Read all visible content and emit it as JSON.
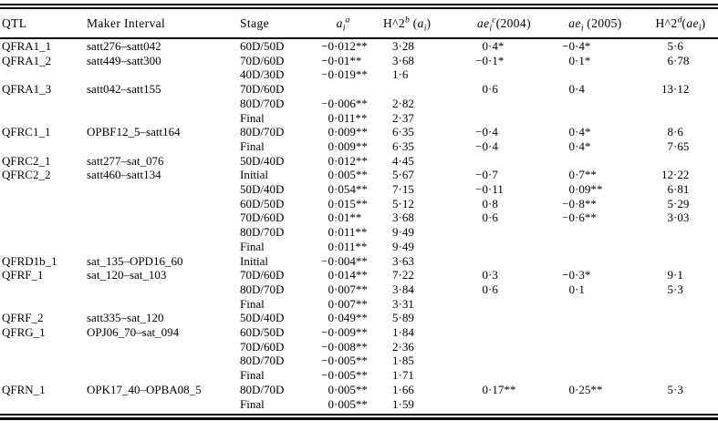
{
  "meta": {
    "background_color": "#ffffff",
    "text_color": "#000000",
    "rule_color": "#000000"
  },
  "header": {
    "qtl": "QTL",
    "interval": "Maker Interval",
    "stage": "Stage",
    "ai": [
      {
        "t": "a",
        "i": true
      },
      {
        "t": "i",
        "f": "sub",
        "i": true
      },
      {
        "t": "a",
        "f": "sup",
        "i": true
      }
    ],
    "h2a": [
      {
        "t": "H^2"
      },
      {
        "t": "b",
        "f": "sup",
        "i": true
      },
      {
        "t": " ("
      },
      {
        "t": "a",
        "i": true
      },
      {
        "t": "i",
        "f": "sub",
        "i": true
      },
      {
        "t": ")"
      }
    ],
    "ae04": [
      {
        "t": "ae",
        "i": true
      },
      {
        "t": "i",
        "f": "sub",
        "i": true
      },
      {
        "t": "c",
        "f": "sup",
        "i": true
      },
      {
        "t": "(2004)"
      }
    ],
    "ae05": [
      {
        "t": "ae",
        "i": true
      },
      {
        "t": "i",
        "f": "sub",
        "i": true
      },
      {
        "t": " (2005)"
      }
    ],
    "h2ae": [
      {
        "t": "H^2"
      },
      {
        "t": "d",
        "f": "sup",
        "i": true
      },
      {
        "t": "("
      },
      {
        "t": "ae",
        "i": true
      },
      {
        "t": "i",
        "f": "sub",
        "i": true
      },
      {
        "t": ")"
      }
    ]
  },
  "rows": [
    {
      "q": "QFRA1_1",
      "m": "satt276–satt042",
      "s": "60D/50D",
      "a": "−0·012**",
      "h": "3·28",
      "e4": "0·4*",
      "e5": "−0·4*",
      "he": "5·6"
    },
    {
      "q": "QFRA1_2",
      "m": "satt449–satt300",
      "s": "70D/60D",
      "a": "−0·01**",
      "h": "3·68",
      "e4": "−0·1*",
      "e5": "0·1*",
      "he": "6·78"
    },
    {
      "q": "",
      "m": "",
      "s": "40D/30D",
      "a": "−0·019**",
      "h": "1·6",
      "e4": "",
      "e5": "",
      "he": ""
    },
    {
      "q": "QFRA1_3",
      "m": "satt042–satt155",
      "s": "70D/60D",
      "a": "",
      "h": "",
      "e4": "0·6",
      "e5": "0·4",
      "he": "13·12"
    },
    {
      "q": "",
      "m": "",
      "s": "80D/70D",
      "a": "−0·006**",
      "h": "2·82",
      "e4": "",
      "e5": "",
      "he": ""
    },
    {
      "q": "",
      "m": "",
      "s": "Final",
      "a": "0·011**",
      "h": "2·37",
      "e4": "",
      "e5": "",
      "he": ""
    },
    {
      "q": "QFRC1_1",
      "m": "OPBF12_5–satt164",
      "s": "80D/70D",
      "a": "0·009**",
      "h": "6·35",
      "e4": "−0·4",
      "e5": "0·4*",
      "he": "8·6"
    },
    {
      "q": "",
      "m": "",
      "s": "Final",
      "a": "0·009**",
      "h": "6·35",
      "e4": "−0·4",
      "e5": "0·4*",
      "he": "7·65"
    },
    {
      "q": "QFRC2_1",
      "m": "satt277–sat_076",
      "s": "50D/40D",
      "a": "0·012**",
      "h": "4·45",
      "e4": "",
      "e5": "",
      "he": ""
    },
    {
      "q": "QFRC2_2",
      "m": "satt460–satt134",
      "s": "Initial",
      "a": "0·005**",
      "h": "5·67",
      "e4": "−0·7",
      "e5": "0·7**",
      "he": "12·22"
    },
    {
      "q": "",
      "m": "",
      "s": "50D/40D",
      "a": "0·054**",
      "h": "7·15",
      "e4": "−0·11",
      "e5": "0·09**",
      "he": "6·81"
    },
    {
      "q": "",
      "m": "",
      "s": "60D/50D",
      "a": "0·015**",
      "h": "5·12",
      "e4": "0·8",
      "e5": "−0·8**",
      "he": "5·29"
    },
    {
      "q": "",
      "m": "",
      "s": "70D/60D",
      "a": "0·01**",
      "h": "3·68",
      "e4": "0·6",
      "e5": "−0·6**",
      "he": "3·03"
    },
    {
      "q": "",
      "m": "",
      "s": "80D/70D",
      "a": "0·011**",
      "h": "9·49",
      "e4": "",
      "e5": "",
      "he": ""
    },
    {
      "q": "",
      "m": "",
      "s": "Final",
      "a": "0·011**",
      "h": "9·49",
      "e4": "",
      "e5": "",
      "he": ""
    },
    {
      "q": "QFRD1b_1",
      "m": "sat_135–OPD16_60",
      "s": "Initial",
      "a": "−0·004**",
      "h": "3·63",
      "e4": "",
      "e5": "",
      "he": ""
    },
    {
      "q": "QFRF_1",
      "m": "sat_120–sat_103",
      "s": "70D/60D",
      "a": "0·014**",
      "h": "7·22",
      "e4": "0·3",
      "e5": "−0·3*",
      "he": "9·1"
    },
    {
      "q": "",
      "m": "",
      "s": "80D/70D",
      "a": "0·007**",
      "h": "3·84",
      "e4": "0·6",
      "e5": "0·1",
      "he": "5·3"
    },
    {
      "q": "",
      "m": "",
      "s": "Final",
      "a": "0·007**",
      "h": "3·31",
      "e4": "",
      "e5": "",
      "he": ""
    },
    {
      "q": "QFRF_2",
      "m": "satt335–sat_120",
      "s": "50D/40D",
      "a": "0·049**",
      "h": "5·89",
      "e4": "",
      "e5": "",
      "he": ""
    },
    {
      "q": "QFRG_1",
      "m": "OPJ06_70–sat_094",
      "s": "60D/50D",
      "a": "−0·009**",
      "h": "1·84",
      "e4": "",
      "e5": "",
      "he": ""
    },
    {
      "q": "",
      "m": "",
      "s": "70D/60D",
      "a": "−0·008**",
      "h": "2·36",
      "e4": "",
      "e5": "",
      "he": ""
    },
    {
      "q": "",
      "m": "",
      "s": "80D/70D",
      "a": "−0·005**",
      "h": "1·85",
      "e4": "",
      "e5": "",
      "he": ""
    },
    {
      "q": "",
      "m": "",
      "s": "Final",
      "a": "−0·005**",
      "h": "1·71",
      "e4": "",
      "e5": "",
      "he": ""
    },
    {
      "q": "QFRN_1",
      "m": "OPK17_40–OPBA08_5",
      "s": "80D/70D",
      "a": "0·005**",
      "h": "1·66",
      "e4": "0·17**",
      "e5": "0·25**",
      "he": "5·3"
    },
    {
      "q": "",
      "m": "",
      "s": "Final",
      "a": "0·005**",
      "h": "1·59",
      "e4": "",
      "e5": "",
      "he": ""
    }
  ]
}
